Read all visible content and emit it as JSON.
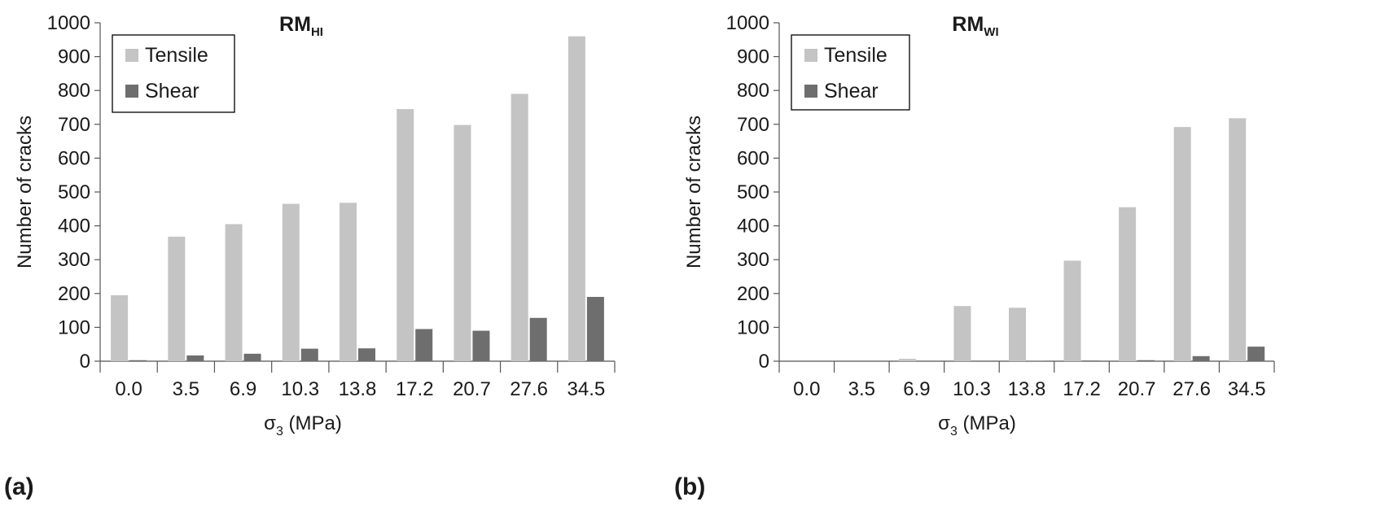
{
  "chart_data": [
    {
      "type": "bar",
      "panel_label": "(a)",
      "title": "RM",
      "title_subscript": "HI",
      "xlabel": "σ",
      "xlabel_subscript": "3",
      "xlabel_unit": " (MPa)",
      "ylabel": "Number of cracks",
      "categories": [
        "0.0",
        "3.5",
        "6.9",
        "10.3",
        "13.8",
        "17.2",
        "20.7",
        "27.6",
        "34.5"
      ],
      "series": [
        {
          "name": "Tensile",
          "color": "#c4c4c4",
          "values": [
            195,
            368,
            405,
            465,
            468,
            745,
            698,
            790,
            960
          ]
        },
        {
          "name": "Shear",
          "color": "#6e6e6e",
          "values": [
            3,
            17,
            22,
            37,
            38,
            95,
            90,
            128,
            190
          ]
        }
      ],
      "ylim": [
        0,
        1000
      ],
      "yticks": [
        "0",
        "100",
        "200",
        "300",
        "400",
        "500",
        "600",
        "700",
        "800",
        "900",
        "1000"
      ],
      "legend_position": "top-left",
      "grid": false
    },
    {
      "type": "bar",
      "panel_label": "(b)",
      "title": "RM",
      "title_subscript": "WI",
      "xlabel": "σ",
      "xlabel_subscript": "3",
      "xlabel_unit": " (MPa)",
      "ylabel": "Number of cracks",
      "categories": [
        "0.0",
        "3.5",
        "6.9",
        "10.3",
        "13.8",
        "17.2",
        "20.7",
        "27.6",
        "34.5"
      ],
      "series": [
        {
          "name": "Tensile",
          "color": "#c4c4c4",
          "values": [
            0,
            0,
            7,
            163,
            158,
            297,
            455,
            692,
            718
          ]
        },
        {
          "name": "Shear",
          "color": "#6e6e6e",
          "values": [
            0,
            0,
            0,
            0,
            1,
            2,
            3,
            15,
            43
          ]
        }
      ],
      "ylim": [
        0,
        1000
      ],
      "yticks": [
        "0",
        "100",
        "200",
        "300",
        "400",
        "500",
        "600",
        "700",
        "800",
        "900",
        "1000"
      ],
      "legend_position": "top-left",
      "grid": false
    }
  ]
}
